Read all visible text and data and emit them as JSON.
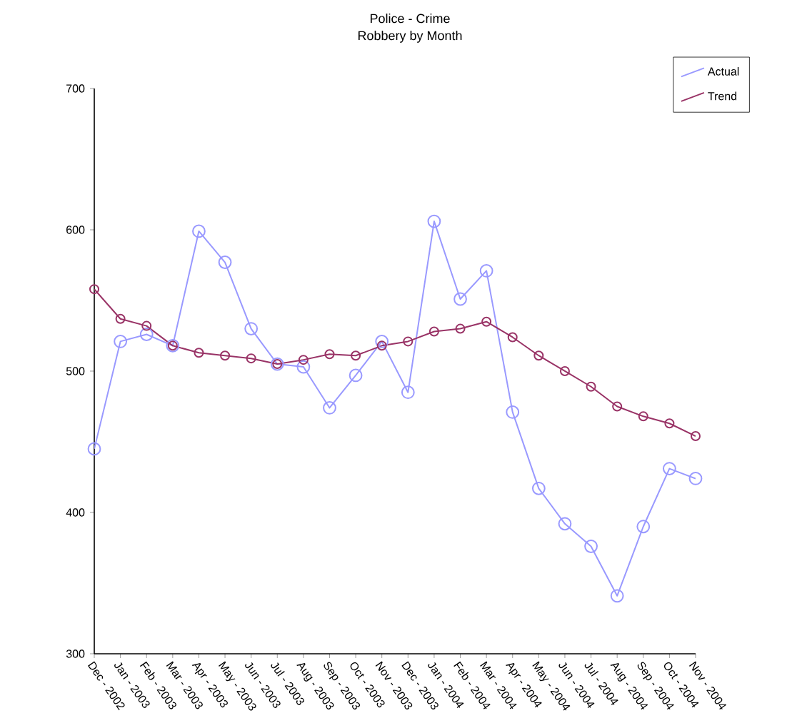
{
  "chart_data": {
    "type": "line",
    "title": "Police - Crime",
    "subtitle": "Robbery by Month",
    "categories": [
      "Dec - 2002",
      "Jan - 2003",
      "Feb - 2003",
      "Mar - 2003",
      "Apr - 2003",
      "May - 2003",
      "Jun - 2003",
      "Jul - 2003",
      "Aug - 2003",
      "Sep - 2003",
      "Oct - 2003",
      "Nov - 2003",
      "Dec - 2003",
      "Jan - 2004",
      "Feb - 2004",
      "Mar - 2004",
      "Apr - 2004",
      "May - 2004",
      "Jun - 2004",
      "Jul - 2004",
      "Aug - 2004",
      "Sep - 2004",
      "Oct - 2004",
      "Nov - 2004"
    ],
    "series": [
      {
        "name": "Actual",
        "color": "#9999ff",
        "values": [
          445,
          521,
          526,
          518,
          599,
          577,
          530,
          505,
          503,
          474,
          497,
          521,
          485,
          606,
          551,
          571,
          471,
          417,
          392,
          376,
          341,
          390,
          431,
          424
        ]
      },
      {
        "name": "Trend",
        "color": "#993366",
        "values": [
          558,
          537,
          532,
          518,
          513,
          511,
          509,
          505,
          508,
          512,
          511,
          518,
          521,
          528,
          530,
          535,
          524,
          511,
          500,
          489,
          475,
          468,
          463,
          454
        ]
      }
    ],
    "ylim": [
      300,
      700
    ],
    "yticks": [
      300,
      400,
      500,
      600,
      700
    ],
    "grid": false,
    "legend": "top right",
    "marker": "circle",
    "line_style": "solid"
  }
}
